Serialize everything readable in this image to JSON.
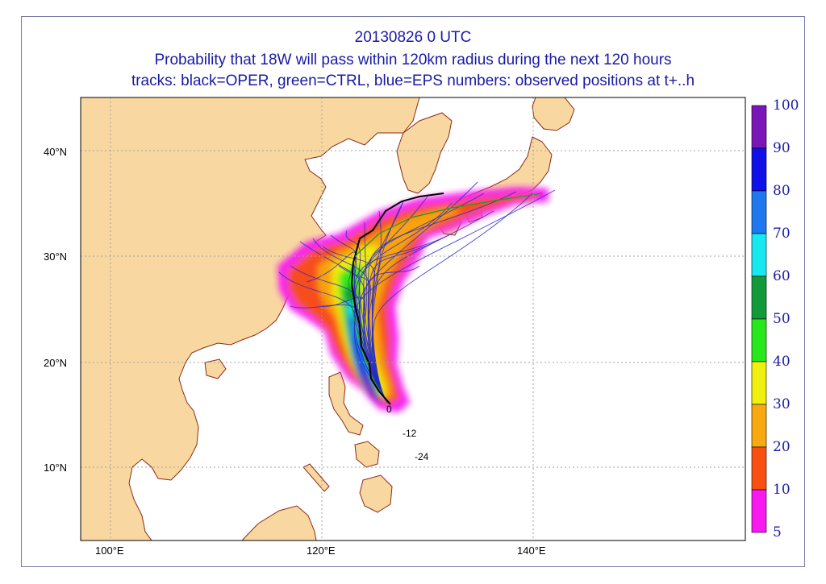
{
  "title": {
    "line1": "20130826 0 UTC",
    "line2": "Probability that 18W will pass within 120km radius during the next 120 hours",
    "line3": "tracks: black=OPER, green=CTRL, blue=EPS numbers: observed positions at t+..h"
  },
  "axes": {
    "lat_labels": [
      "40°N",
      "30°N",
      "20°N",
      "10°N"
    ],
    "lon_labels": [
      "100°E",
      "120°E",
      "140°E"
    ]
  },
  "colorbar": {
    "labels": [
      "100",
      "90",
      "80",
      "70",
      "60",
      "50",
      "40",
      "30",
      "20",
      "10",
      "5"
    ],
    "colors": [
      "#7a16b8",
      "#1010e8",
      "#1f78f0",
      "#18e8f0",
      "#129a3a",
      "#28e81c",
      "#f0f010",
      "#f8a810",
      "#f85010",
      "#f818f0"
    ]
  },
  "observed_positions": {
    "p0": "0",
    "p12": "-12",
    "p24": "-24"
  },
  "colors": {
    "land": "#f8d8a0",
    "coast": "#8a2a1a",
    "sea": "#ffffff",
    "title": "#1a1aa6",
    "oper_track": "#000000",
    "eps_track": "#2828c8"
  }
}
